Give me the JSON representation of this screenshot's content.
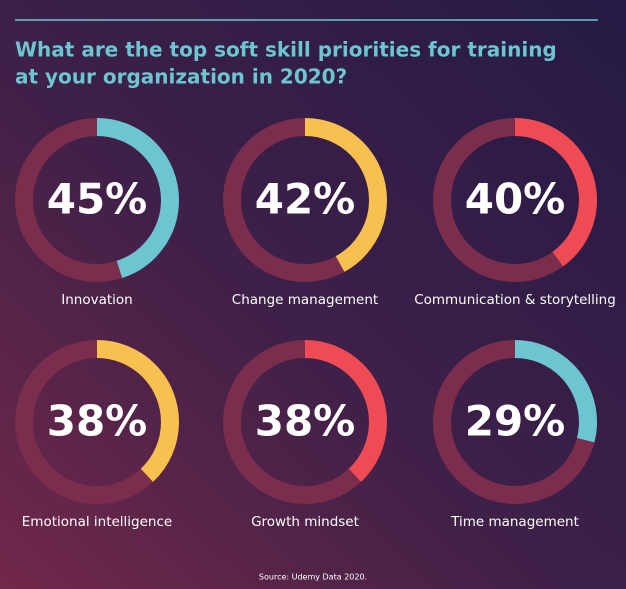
{
  "title": [
    "What are the top soft skill priorities for training",
    "at your organization in 2020?"
  ],
  "source": "Source: Udemy Data 2020.",
  "chart_data": [
    {
      "type": "donut",
      "title": "Innovation",
      "values": [
        45
      ],
      "value_labels": [
        "45%"
      ],
      "color": "#6cc5d1"
    },
    {
      "type": "donut",
      "title": "Change management",
      "values": [
        42
      ],
      "value_labels": [
        "42%"
      ],
      "color": "#f7c04f"
    },
    {
      "type": "donut",
      "title": "Communication & storytelling",
      "values": [
        40
      ],
      "value_labels": [
        "40%"
      ],
      "color": "#ee4b55"
    },
    {
      "type": "donut",
      "title": "Emotional intelligence",
      "values": [
        38
      ],
      "value_labels": [
        "38%"
      ],
      "color": "#f7c04f"
    },
    {
      "type": "donut",
      "title": "Growth mindset",
      "values": [
        38
      ],
      "value_labels": [
        "38%"
      ],
      "color": "#ee4b55"
    },
    {
      "type": "donut",
      "title": "Time management",
      "values": [
        29
      ],
      "value_labels": [
        "29%"
      ],
      "color": "#6cc5d1"
    }
  ]
}
